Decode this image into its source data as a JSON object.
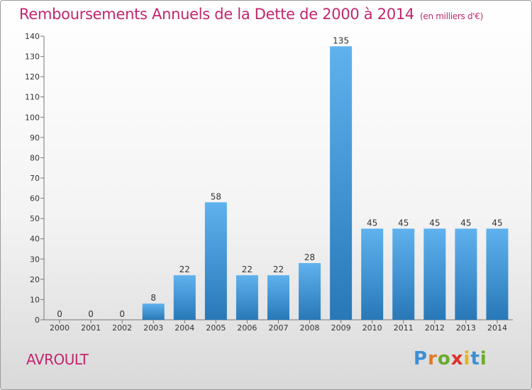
{
  "title": "Remboursements Annuels de la Dette de 2000 à 2014",
  "unit": "(en milliers d'€)",
  "commune": "AVROULT",
  "logo": {
    "letters": [
      "P",
      "r",
      "o",
      "x",
      "i",
      "t",
      "i"
    ],
    "colors": [
      "#3b8fd6",
      "#e07a2a",
      "#6aaa2e",
      "#d9342b",
      "#e8b318",
      "#3b8fd6",
      "#6aaa2e"
    ]
  },
  "colors": {
    "title": "#c2266e",
    "bar_top": "#5fb2ee",
    "bar_bottom": "#2878b8"
  },
  "chart_data": {
    "type": "bar",
    "categories": [
      "2000",
      "2001",
      "2002",
      "2003",
      "2004",
      "2005",
      "2006",
      "2007",
      "2008",
      "2009",
      "2010",
      "2011",
      "2012",
      "2013",
      "2014"
    ],
    "values": [
      0,
      0,
      0,
      8,
      22,
      58,
      22,
      22,
      28,
      135,
      45,
      45,
      45,
      45,
      45
    ],
    "ylim": [
      0,
      140
    ],
    "yticks": [
      0,
      10,
      20,
      30,
      40,
      50,
      60,
      70,
      80,
      90,
      100,
      110,
      120,
      130,
      140
    ],
    "grid": false,
    "data_labels": true
  }
}
